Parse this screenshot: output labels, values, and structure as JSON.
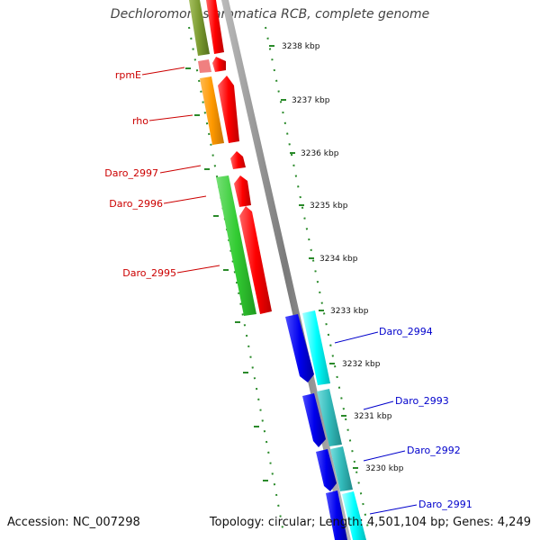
{
  "title": "Dechloromonas aromatica RCB, complete genome",
  "footer": {
    "accession": "Accession: NC_007298",
    "summary": "Topology: circular; Length: 4,501,104 bp; Genes: 4,249"
  },
  "ticks": [
    "3238 kbp",
    "3237 kbp",
    "3236 kbp",
    "3235 kbp",
    "3234 kbp",
    "3233 kbp",
    "3232 kbp",
    "3231 kbp",
    "3230 kbp"
  ],
  "genes_left": [
    "rpmE",
    "rho",
    "Daro_2997",
    "Daro_2996",
    "Daro_2995"
  ],
  "genes_right": [
    "Daro_2994",
    "Daro_2993",
    "Daro_2992",
    "Daro_2991"
  ],
  "colors": {
    "backbone": "#888888",
    "reverse_strand": "#ff0000",
    "forward_strand": "#0000ff",
    "cog_olive": "#7a9a30",
    "cog_pink": "#f08080",
    "cog_orange": "#ff9900",
    "cog_green": "#33cc33",
    "cog_cyan": "#00ffff",
    "cog_teal": "#33bbbb",
    "dots": "#2a8a2a"
  }
}
